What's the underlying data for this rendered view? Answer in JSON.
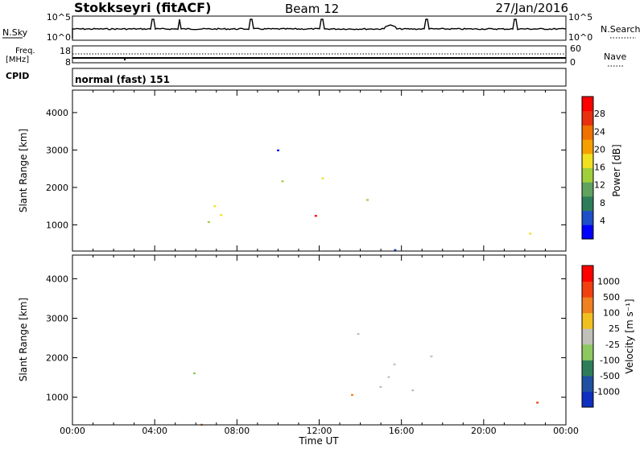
{
  "header": {
    "station": "Stokkseyri (fitACF)",
    "beam": "Beam 12",
    "date": "27/Jan/2016"
  },
  "noise_panel": {
    "left_label": "N.Sky",
    "left_top_tick": "10^5",
    "left_bottom_tick": "10^0",
    "right_label": "N.Search",
    "right_top_tick": "10^5",
    "right_bottom_tick": "10^0"
  },
  "freq_panel": {
    "left_label_line1": "Freq.",
    "left_label_line2": "[MHz]",
    "left_top_tick": "18",
    "left_bottom_tick": "8",
    "right_label": "Nave",
    "right_top_tick": "60",
    "right_bottom_tick": "0"
  },
  "cpid": {
    "label": "CPID",
    "value": "normal (fast) 151"
  },
  "chart_data": [
    {
      "type": "heatmap",
      "name": "power",
      "ylabel": "Slant Range [km]",
      "ylim": [
        300,
        4600
      ],
      "yticks": [
        "1000",
        "2000",
        "3000",
        "4000"
      ],
      "xlim_hours": [
        0,
        24
      ],
      "colorbar_label": "Power [dB]",
      "colorbar_ticks": [
        "4",
        "8",
        "12",
        "16",
        "20",
        "24",
        "28"
      ],
      "colorbar_colors": [
        "#0000ff",
        "#1c4fc8",
        "#2e7d5a",
        "#5fa35f",
        "#a0cf3c",
        "#f0e020",
        "#f5a000",
        "#f07000",
        "#e83010",
        "#ff0000"
      ]
    },
    {
      "type": "heatmap",
      "name": "velocity",
      "ylabel": "Slant Range [km]",
      "ylim": [
        300,
        4600
      ],
      "yticks": [
        "1000",
        "2000",
        "3000",
        "4000"
      ],
      "xlim_hours": [
        0,
        24
      ],
      "colorbar_label": "Velocity [m s⁻¹]",
      "colorbar_ticks": [
        "1000",
        "500",
        "100",
        "25",
        "-25",
        "-100",
        "-500",
        "-1000"
      ],
      "colorbar_colors": [
        "#1030c0",
        "#2050a0",
        "#2e7d5a",
        "#8dc860",
        "#c0c0b8",
        "#f0c020",
        "#f08020",
        "#f04010",
        "#ff0000"
      ]
    }
  ],
  "x_axis": {
    "label": "Time UT",
    "ticks": [
      "00:00",
      "04:00",
      "08:00",
      "12:00",
      "16:00",
      "20:00",
      "00:00"
    ]
  }
}
